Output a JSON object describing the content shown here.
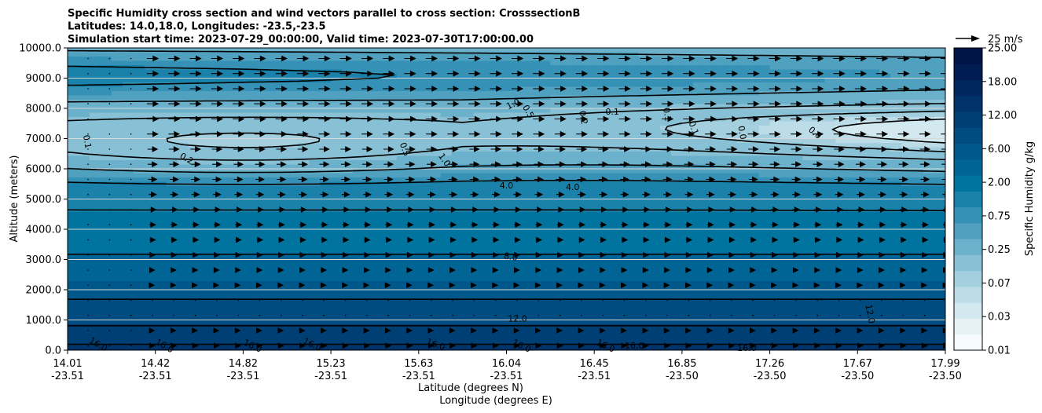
{
  "chart_data": {
    "type": "contour",
    "title_lines": [
      "Specific Humidity cross section and wind vectors parallel to cross section: CrosssectionB",
      "Latitudes: 14.0,18.0, Longitudes: -23.5,-23.5",
      "Simulation start time: 2023-07-29_00:00:00, Valid time: 2023-07-30T17:00:00.00"
    ],
    "xlabel_lines": [
      "Latitude (degrees N)",
      "Longitude (degrees E)"
    ],
    "ylabel": "Altitude (meters)",
    "ylim": [
      0,
      10000
    ],
    "y_ticks": [
      "0.0",
      "1000.0",
      "2000.0",
      "3000.0",
      "4000.0",
      "5000.0",
      "6000.0",
      "7000.0",
      "8000.0",
      "9000.0",
      "10000.0"
    ],
    "x_ticks": [
      {
        "lat": "14.01",
        "lon": "-23.51"
      },
      {
        "lat": "14.42",
        "lon": "-23.51"
      },
      {
        "lat": "14.82",
        "lon": "-23.51"
      },
      {
        "lat": "15.23",
        "lon": "-23.51"
      },
      {
        "lat": "15.63",
        "lon": "-23.51"
      },
      {
        "lat": "16.04",
        "lon": "-23.51"
      },
      {
        "lat": "16.45",
        "lon": "-23.51"
      },
      {
        "lat": "16.85",
        "lon": "-23.50"
      },
      {
        "lat": "17.26",
        "lon": "-23.50"
      },
      {
        "lat": "17.67",
        "lon": "-23.50"
      },
      {
        "lat": "17.99",
        "lon": "-23.50"
      }
    ],
    "colorbar": {
      "label": "Specific Humidity g/kg",
      "levels": [
        0.01,
        0.02,
        0.03,
        0.05,
        0.07,
        0.1,
        0.25,
        0.5,
        0.75,
        1,
        2,
        4,
        6,
        8,
        12,
        16,
        18,
        20,
        25
      ],
      "tick_labels": [
        "0.01",
        "0.03",
        "0.07",
        "0.25",
        "0.75",
        "2.00",
        "6.00",
        "12.00",
        "18.00",
        "25.00"
      ],
      "colors": [
        "#f7fbfd",
        "#e7f2f6",
        "#d3e9f0",
        "#bcdde8",
        "#a3cfdf",
        "#88c1d5",
        "#6cb1cb",
        "#50a1c0",
        "#3591b5",
        "#1a82aa",
        "#00739f",
        "#006595",
        "#00588a",
        "#004b7f",
        "#003f74",
        "#003369",
        "#00285e",
        "#001d53",
        "#001448"
      ]
    },
    "grid": true,
    "vector_key": {
      "label": "25 m/s",
      "speed": 25
    },
    "contour_labels": [
      {
        "text": "0.1",
        "lat": 14.1,
        "alt": 6900,
        "rot": 80
      },
      {
        "text": "0.2",
        "lat": 14.55,
        "alt": 6350,
        "rot": 30
      },
      {
        "text": "0.5",
        "lat": 15.54,
        "alt": 6650,
        "rot": 70
      },
      {
        "text": "1.0",
        "lat": 15.72,
        "alt": 6300,
        "rot": 55
      },
      {
        "text": "1.0",
        "lat": 16.03,
        "alt": 8150,
        "rot": -25
      },
      {
        "text": "0.5",
        "lat": 16.1,
        "alt": 7900,
        "rot": 60
      },
      {
        "text": "0.2",
        "lat": 16.35,
        "alt": 7700,
        "rot": 80
      },
      {
        "text": "0.1",
        "lat": 16.48,
        "alt": 7900,
        "rot": 0
      },
      {
        "text": "0.1",
        "lat": 16.73,
        "alt": 7800,
        "rot": 80
      },
      {
        "text": "0.1",
        "lat": 16.85,
        "alt": 7350,
        "rot": 70
      },
      {
        "text": "0.0",
        "lat": 17.07,
        "alt": 7200,
        "rot": 80
      },
      {
        "text": "0.0",
        "lat": 17.4,
        "alt": 7200,
        "rot": 40
      },
      {
        "text": "4.0",
        "lat": 16.0,
        "alt": 5450,
        "rot": 0
      },
      {
        "text": "4.0",
        "lat": 16.3,
        "alt": 5400,
        "rot": 0
      },
      {
        "text": "8.0",
        "lat": 16.02,
        "alt": 3100,
        "rot": 10
      },
      {
        "text": "12.0",
        "lat": 16.05,
        "alt": 1050,
        "rot": 0
      },
      {
        "text": "12.0",
        "lat": 17.65,
        "alt": 1200,
        "rot": 80
      },
      {
        "text": "16.0",
        "lat": 14.15,
        "alt": 200,
        "rot": 30
      },
      {
        "text": "16.0",
        "lat": 14.45,
        "alt": 150,
        "rot": 30
      },
      {
        "text": "16.0",
        "lat": 14.85,
        "alt": 150,
        "rot": 25
      },
      {
        "text": "16.0",
        "lat": 15.12,
        "alt": 200,
        "rot": 25
      },
      {
        "text": "16.0",
        "lat": 15.68,
        "alt": 200,
        "rot": 20
      },
      {
        "text": "16.0",
        "lat": 16.07,
        "alt": 150,
        "rot": 25
      },
      {
        "text": "16.0",
        "lat": 16.45,
        "alt": 150,
        "rot": 25
      },
      {
        "text": "16.0",
        "lat": 16.58,
        "alt": 150,
        "rot": 0
      },
      {
        "text": "16.0",
        "lat": 17.09,
        "alt": 80,
        "rot": 0
      }
    ]
  }
}
